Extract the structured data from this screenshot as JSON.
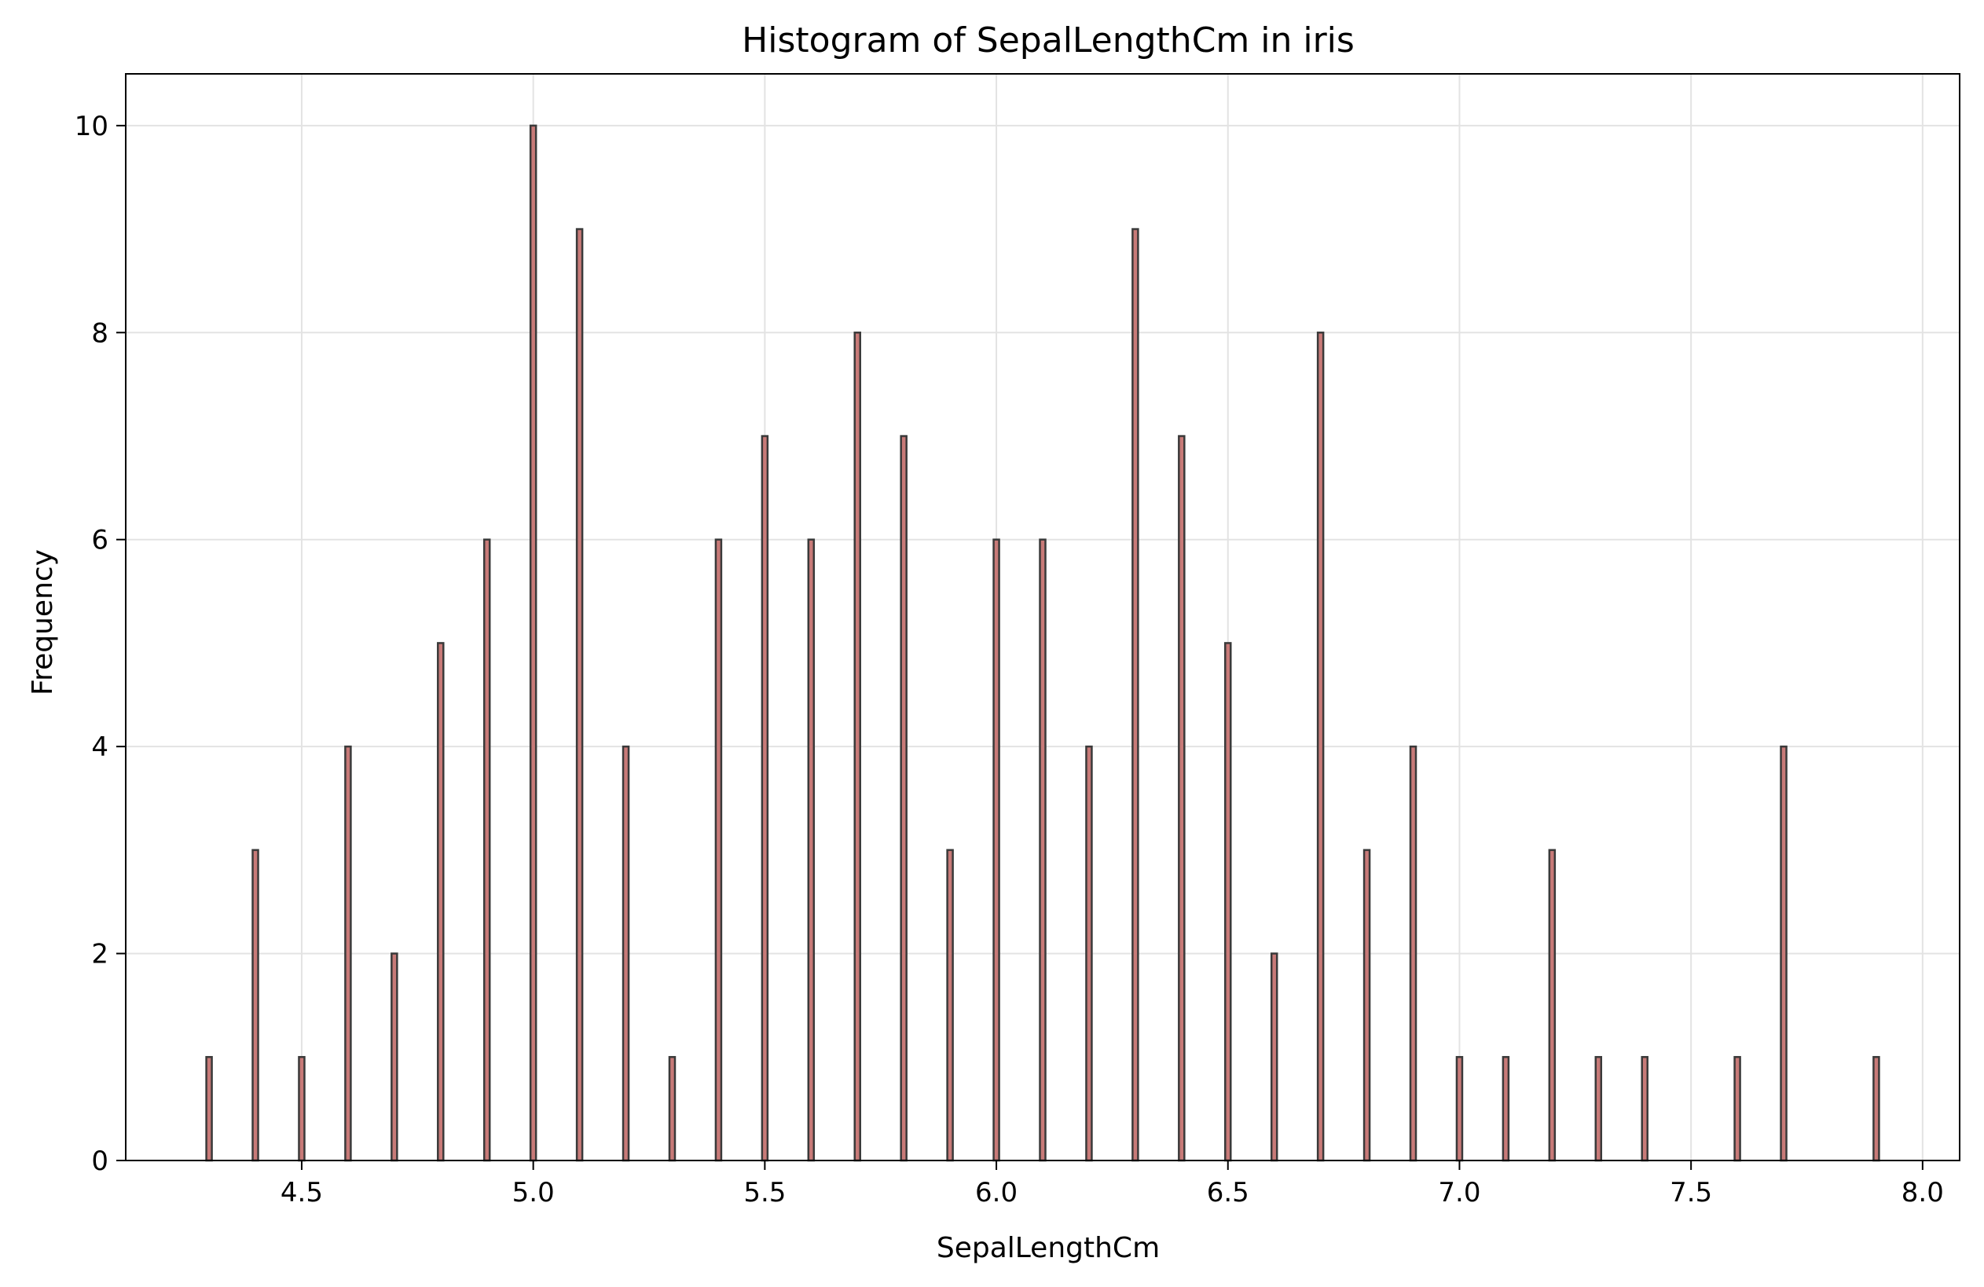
{
  "chart_data": {
    "type": "bar",
    "title": "Histogram of SepalLengthCm in iris",
    "xlabel": "SepalLengthCm",
    "ylabel": "Frequency",
    "xlim": [
      4.12,
      8.08
    ],
    "ylim": [
      0,
      10.5
    ],
    "xticks": [
      "4.5",
      "5.0",
      "5.5",
      "6.0",
      "6.5",
      "7.0",
      "7.5",
      "8.0"
    ],
    "yticks": [
      "0",
      "2",
      "4",
      "6",
      "8",
      "10"
    ],
    "grid": true,
    "bar_color": "#c87a78",
    "edge_color": "#3a3a3a",
    "bins": [
      {
        "x": 4.3,
        "count": 1
      },
      {
        "x": 4.4,
        "count": 3
      },
      {
        "x": 4.5,
        "count": 1
      },
      {
        "x": 4.6,
        "count": 4
      },
      {
        "x": 4.7,
        "count": 2
      },
      {
        "x": 4.8,
        "count": 5
      },
      {
        "x": 4.9,
        "count": 6
      },
      {
        "x": 5.0,
        "count": 10
      },
      {
        "x": 5.1,
        "count": 9
      },
      {
        "x": 5.2,
        "count": 4
      },
      {
        "x": 5.3,
        "count": 1
      },
      {
        "x": 5.4,
        "count": 6
      },
      {
        "x": 5.5,
        "count": 7
      },
      {
        "x": 5.6,
        "count": 6
      },
      {
        "x": 5.7,
        "count": 8
      },
      {
        "x": 5.8,
        "count": 7
      },
      {
        "x": 5.9,
        "count": 3
      },
      {
        "x": 6.0,
        "count": 6
      },
      {
        "x": 6.1,
        "count": 6
      },
      {
        "x": 6.2,
        "count": 4
      },
      {
        "x": 6.3,
        "count": 9
      },
      {
        "x": 6.4,
        "count": 7
      },
      {
        "x": 6.5,
        "count": 5
      },
      {
        "x": 6.6,
        "count": 2
      },
      {
        "x": 6.7,
        "count": 8
      },
      {
        "x": 6.8,
        "count": 3
      },
      {
        "x": 6.9,
        "count": 4
      },
      {
        "x": 7.0,
        "count": 1
      },
      {
        "x": 7.1,
        "count": 1
      },
      {
        "x": 7.2,
        "count": 3
      },
      {
        "x": 7.3,
        "count": 1
      },
      {
        "x": 7.4,
        "count": 1
      },
      {
        "x": 7.6,
        "count": 1
      },
      {
        "x": 7.7,
        "count": 4
      },
      {
        "x": 7.9,
        "count": 1
      }
    ]
  }
}
